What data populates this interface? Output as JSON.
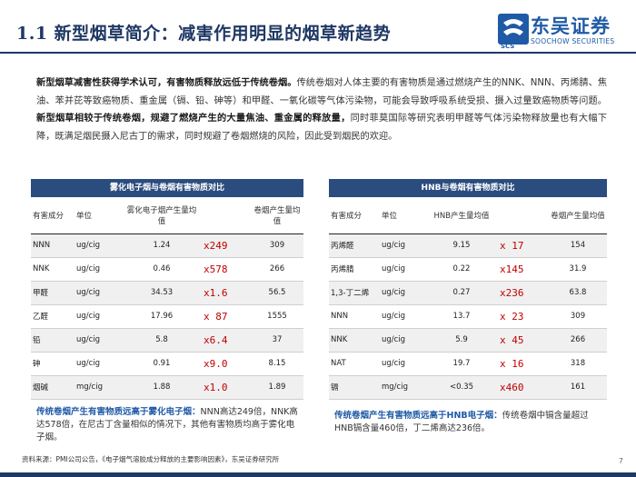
{
  "title": "1.1 新型烟草简介：减害作用明显的烟草新趋势",
  "logo": {
    "cn": "东吴证券",
    "en": "SOOCHOW SECURITIES",
    "mark": "SCS"
  },
  "intro": {
    "p1_bold": "新型烟草减害性获得学术认可，有害物质释放远低于传统卷烟。",
    "p1_text": "传统卷烟对人体主要的有害物质是通过燃烧产生的NNK、NNN、丙烯腈、焦油、苯并芘等致癌物质、重金属（镉、铅、砷等）和甲醛、一氧化碳等气体污染物，可能会导致呼吸系统受损、摄入过量致癌物质等问题。",
    "p2_bold": "新型烟草相较于传统卷烟，规避了燃烧产生的大量焦油、重金属的释放量，",
    "p2_text": "同时菲莫国际等研究表明甲醛等气体污染物释放量也有大幅下降，既满足烟民摄入尼古丁的需求，同时规避了卷烟燃烧的风险，因此受到烟民的欢迎。"
  },
  "table_left": {
    "title": "雾化电子烟与卷烟有害物质对比",
    "headers": [
      "有害成分",
      "单位",
      "雾化电子烟产生量均值",
      "",
      "卷烟产生量均值"
    ],
    "rows": [
      {
        "name": "NNN",
        "unit": "ug/cig",
        "value": "1.24",
        "mult": "x249",
        "cig": "309"
      },
      {
        "name": "NNK",
        "unit": "ug/cig",
        "value": "0.46",
        "mult": "x578",
        "cig": "266"
      },
      {
        "name": "甲醛",
        "unit": "ug/cig",
        "value": "34.53",
        "mult": "x1.6",
        "cig": "56.5"
      },
      {
        "name": "乙醛",
        "unit": "ug/cig",
        "value": "17.96",
        "mult": "x 87",
        "cig": "1555"
      },
      {
        "name": "铅",
        "unit": "ug/cig",
        "value": "5.8",
        "mult": "x6.4",
        "cig": "37"
      },
      {
        "name": "砷",
        "unit": "ug/cig",
        "value": "0.91",
        "mult": "x9.0",
        "cig": "8.15"
      },
      {
        "name": "烟碱",
        "unit": "mg/cig",
        "value": "1.88",
        "mult": "x1.0",
        "cig": "1.89"
      }
    ]
  },
  "table_right": {
    "title": "HNB与卷烟有害物质对比",
    "headers": [
      "有害成分",
      "单位",
      "HNB产生量均值",
      "",
      "卷烟产生量均值"
    ],
    "rows": [
      {
        "name": "丙烯醛",
        "unit": "ug/cig",
        "value": "9.15",
        "mult": "x 17",
        "cig": "154"
      },
      {
        "name": "丙烯腈",
        "unit": "ug/cig",
        "value": "0.22",
        "mult": "x145",
        "cig": "31.9"
      },
      {
        "name": "1,3-丁二烯",
        "unit": "ug/cig",
        "value": "0.27",
        "mult": "x236",
        "cig": "63.8"
      },
      {
        "name": "NNN",
        "unit": "ug/cig",
        "value": "13.7",
        "mult": "x 23",
        "cig": "309"
      },
      {
        "name": "NNK",
        "unit": "ug/cig",
        "value": "5.9",
        "mult": "x 45",
        "cig": "266"
      },
      {
        "name": "NAT",
        "unit": "ug/cig",
        "value": "19.7",
        "mult": "x 16",
        "cig": "318"
      },
      {
        "name": "镉",
        "unit": "mg/cig",
        "value": "<0.35",
        "mult": "x460",
        "cig": "161"
      }
    ]
  },
  "concl_left": {
    "hl": "传统卷烟产生有害物质远高于雾化电子烟：",
    "text": "NNN高达249倍，NNK高达578倍，在尼古丁含量相似的情况下，其他有害物质均高于雾化电子烟。"
  },
  "concl_right": {
    "hl": "传统卷烟产生有害物质远高于HNB电子烟：",
    "text": "传统卷烟中镉含量超过HNB镉含量460倍，丁二烯高达236倍。"
  },
  "source": "资料来源：PMI公司公告，《电子烟气溶胶成分释放的主要影响因素》，东吴证券研究所",
  "page": "7",
  "colors": {
    "navy": "#1f3864",
    "header_bg": "#2b4c7e",
    "multiplier": "#c00000",
    "brand_blue": "#1f5aa6"
  }
}
